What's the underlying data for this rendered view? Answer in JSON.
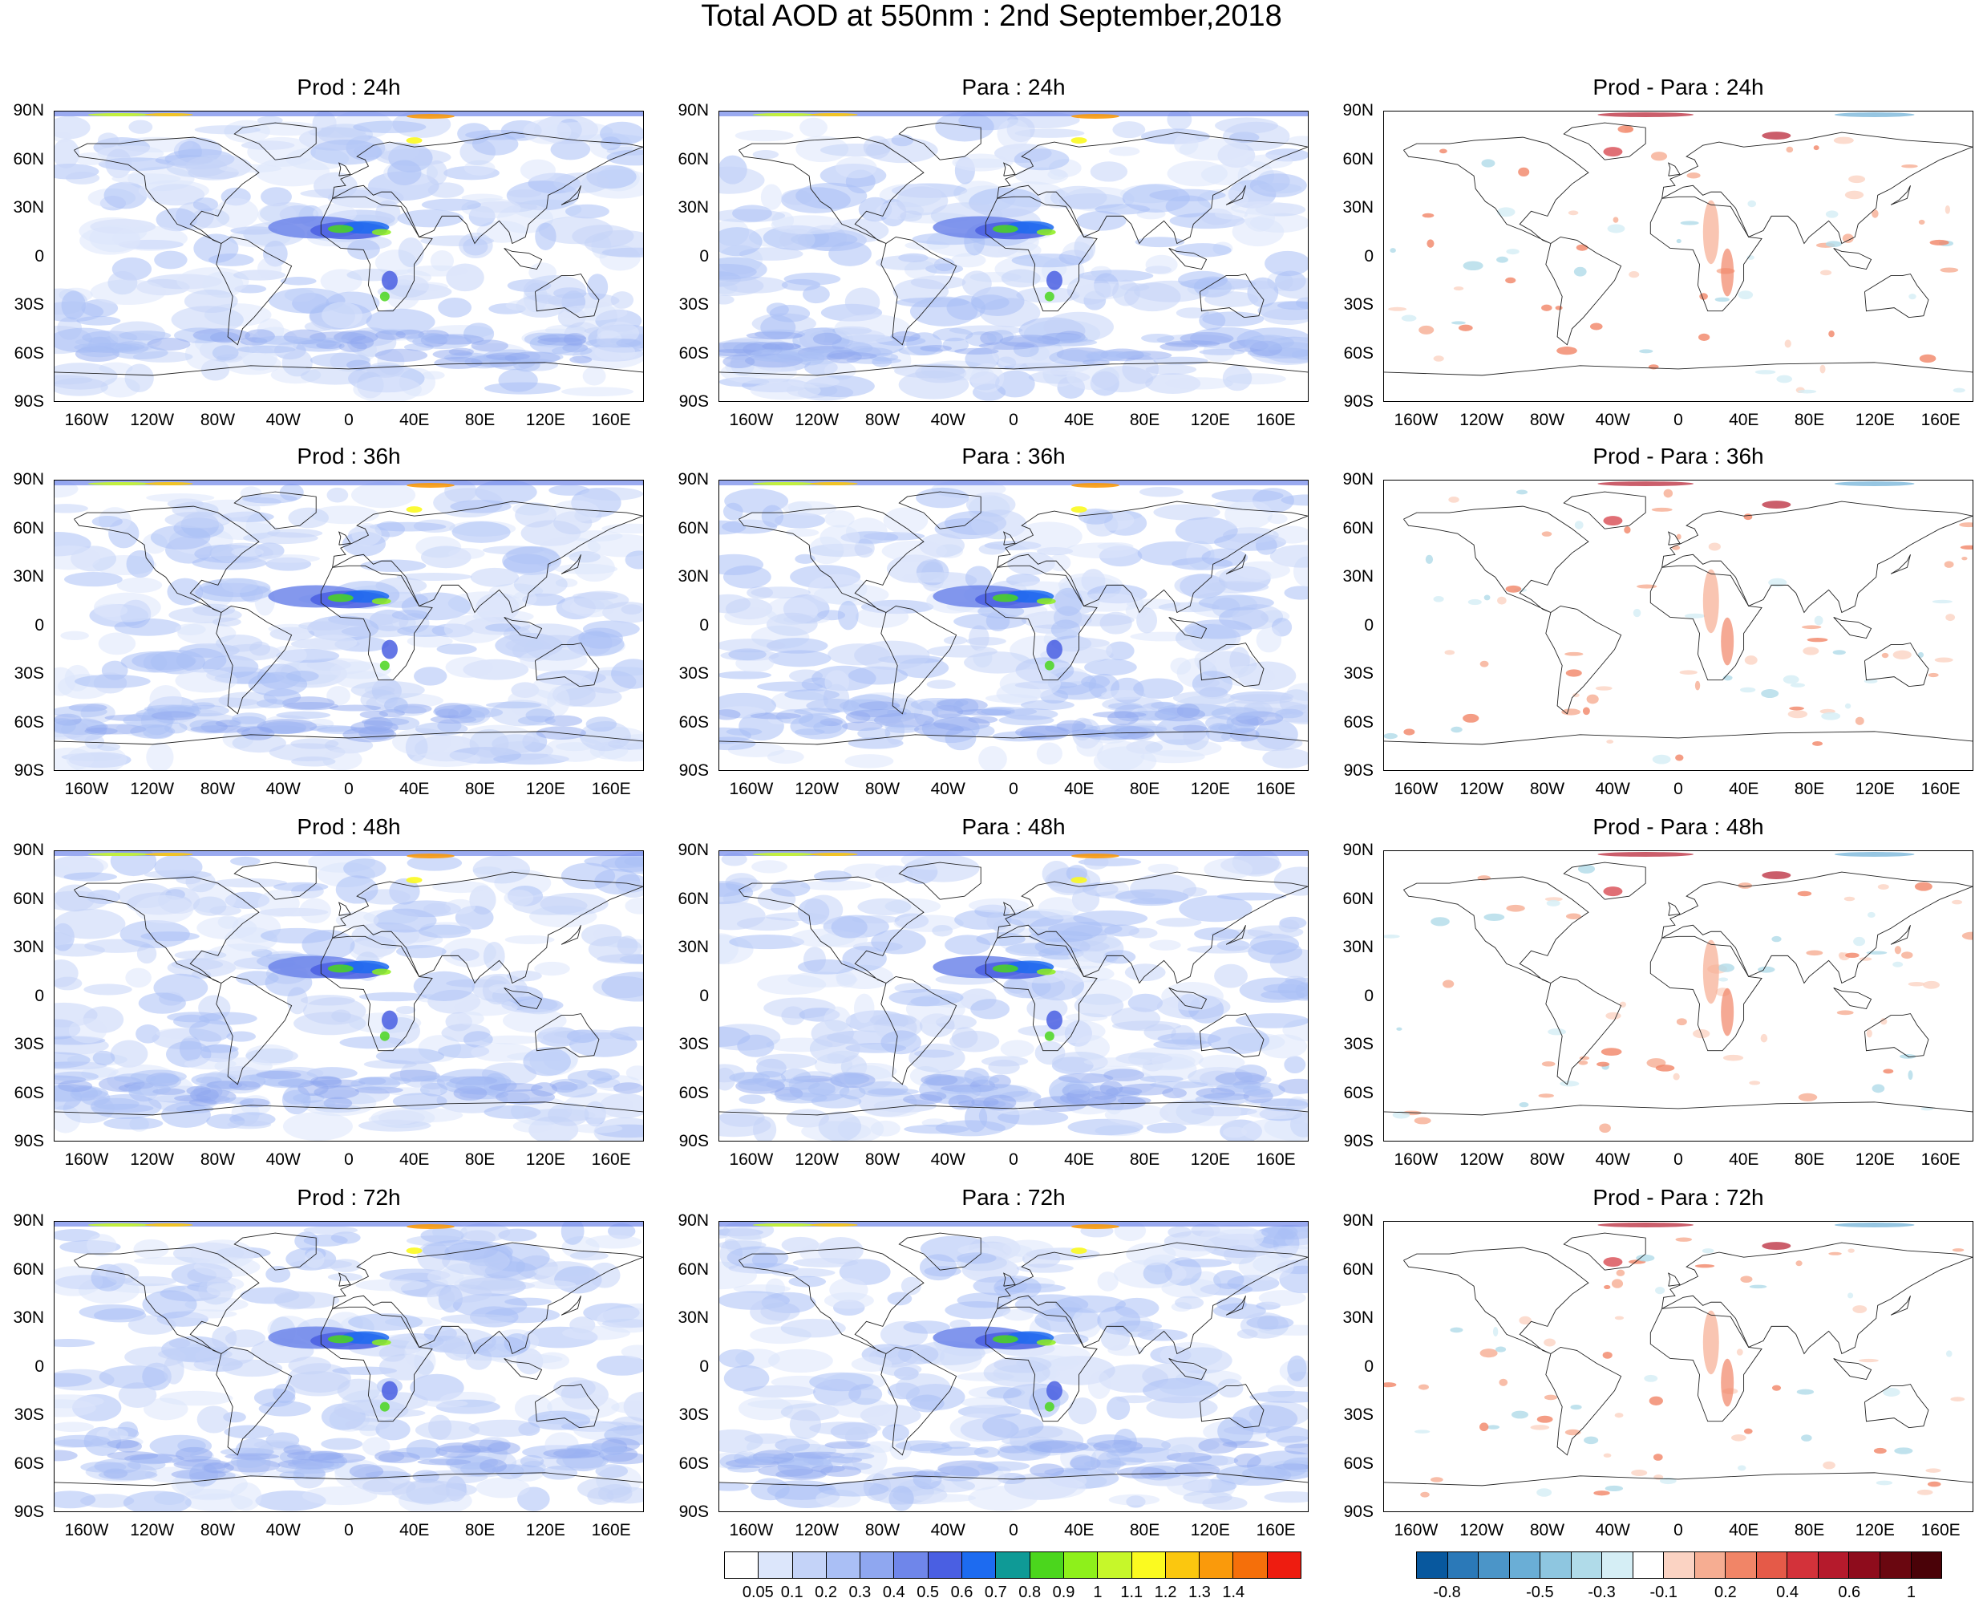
{
  "title": "Total AOD at 550nm : 2nd September,2018",
  "chart_data": {
    "type": "heatmap",
    "map_projection": "cylindrical equidistant (global)",
    "lat_ticks": [
      "90N",
      "60N",
      "30N",
      "0",
      "30S",
      "60S",
      "90S"
    ],
    "lon_ticks": [
      "160W",
      "120W",
      "80W",
      "40W",
      "0",
      "40E",
      "80E",
      "120E",
      "160E"
    ],
    "lat_values": [
      90,
      60,
      30,
      0,
      -30,
      -60,
      -90
    ],
    "lon_values": [
      -160,
      -120,
      -80,
      -40,
      0,
      40,
      80,
      120,
      160
    ],
    "panels": [
      {
        "title": "Prod : 24h",
        "field": "aod",
        "row": 0,
        "col": 0
      },
      {
        "title": "Para : 24h",
        "field": "aod",
        "row": 0,
        "col": 1
      },
      {
        "title": "Prod - Para : 24h",
        "field": "diff",
        "row": 0,
        "col": 2
      },
      {
        "title": "Prod : 36h",
        "field": "aod",
        "row": 1,
        "col": 0
      },
      {
        "title": "Para : 36h",
        "field": "aod",
        "row": 1,
        "col": 1
      },
      {
        "title": "Prod - Para : 36h",
        "field": "diff",
        "row": 1,
        "col": 2
      },
      {
        "title": "Prod : 48h",
        "field": "aod",
        "row": 2,
        "col": 0
      },
      {
        "title": "Para : 48h",
        "field": "aod",
        "row": 2,
        "col": 1
      },
      {
        "title": "Prod - Para : 48h",
        "field": "diff",
        "row": 2,
        "col": 2
      },
      {
        "title": "Prod : 72h",
        "field": "aod",
        "row": 3,
        "col": 0
      },
      {
        "title": "Para : 72h",
        "field": "aod",
        "row": 3,
        "col": 1
      },
      {
        "title": "Prod - Para : 72h",
        "field": "diff",
        "row": 3,
        "col": 2
      }
    ],
    "colorbars": [
      {
        "field": "aod",
        "labels": [
          "0.05",
          "0.1",
          "0.2",
          "0.3",
          "0.4",
          "0.5",
          "0.6",
          "0.7",
          "0.8",
          "0.9",
          "1",
          "1.1",
          "1.2",
          "1.3",
          "1.4"
        ],
        "colors": [
          "#ffffff",
          "#dce6fb",
          "#c4d3f8",
          "#aabff5",
          "#8fa7f0",
          "#6f86ea",
          "#4a5fe2",
          "#1d6bf0",
          "#0f9a96",
          "#4bd61d",
          "#8ef01b",
          "#c6f72a",
          "#fbfa20",
          "#fbc70f",
          "#fa9a0b",
          "#f56f0a",
          "#ee1c10"
        ]
      },
      {
        "field": "diff",
        "labels": [
          "-0.8",
          "-0.5",
          "-0.3",
          "-0.1",
          "0.2",
          "0.4",
          "0.6",
          "1"
        ],
        "tick_values": [
          -0.8,
          -0.7,
          -0.6,
          -0.5,
          -0.4,
          -0.3,
          -0.2,
          -0.1,
          0.1,
          0.2,
          0.3,
          0.4,
          0.5,
          0.6,
          0.8,
          1
        ],
        "colors": [
          "#08589e",
          "#2b79b8",
          "#4b95c8",
          "#6aaed6",
          "#8ec6e0",
          "#b0dbe9",
          "#d5eef5",
          "#ffffff",
          "#fbd3c3",
          "#f6ad92",
          "#f18567",
          "#e55a48",
          "#d3323a",
          "#b51a2c",
          "#8e0c1c",
          "#6a0710",
          "#4a0208"
        ]
      }
    ]
  }
}
